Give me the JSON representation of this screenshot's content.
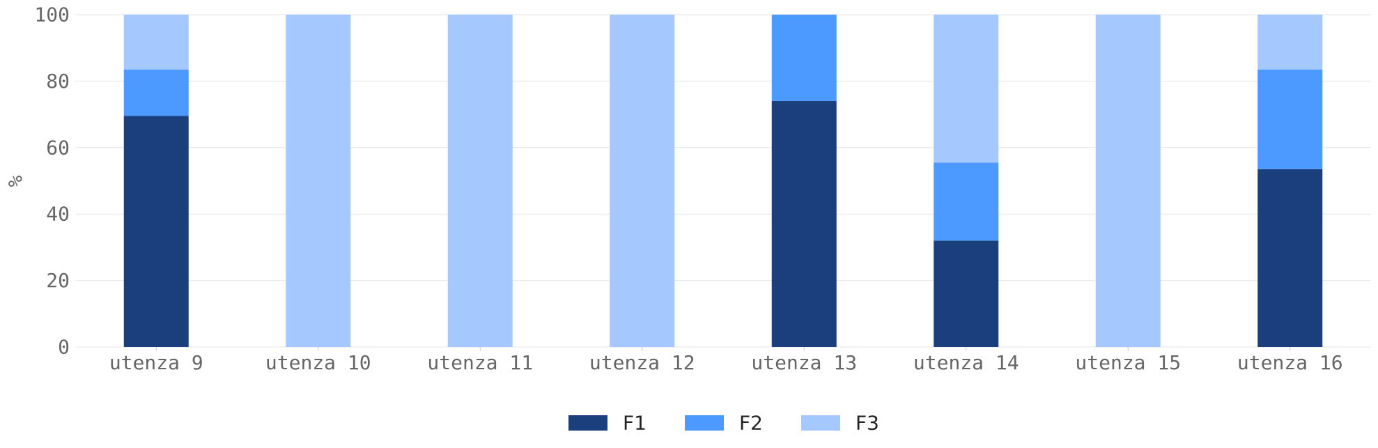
{
  "chart_data": {
    "type": "bar",
    "stacked": true,
    "title": "",
    "xlabel": "",
    "ylabel": "%",
    "ylim": [
      0,
      100
    ],
    "yticks": [
      0,
      20,
      40,
      60,
      80,
      100
    ],
    "grid": true,
    "legend_position": "bottom-center",
    "categories": [
      "utenza 9",
      "utenza 10",
      "utenza 11",
      "utenza 12",
      "utenza 13",
      "utenza 14",
      "utenza 15",
      "utenza 16"
    ],
    "series": [
      {
        "name": "F1",
        "color": "#1b3e7c",
        "values": [
          69.5,
          0,
          0,
          0,
          74,
          32,
          0,
          53.5
        ]
      },
      {
        "name": "F2",
        "color": "#4c9aff",
        "values": [
          14,
          0,
          0,
          0,
          26,
          23.5,
          0,
          30
        ]
      },
      {
        "name": "F3",
        "color": "#a4c8ff",
        "values": [
          16.5,
          100,
          100,
          100,
          0,
          44.5,
          100,
          16.5
        ]
      }
    ]
  }
}
